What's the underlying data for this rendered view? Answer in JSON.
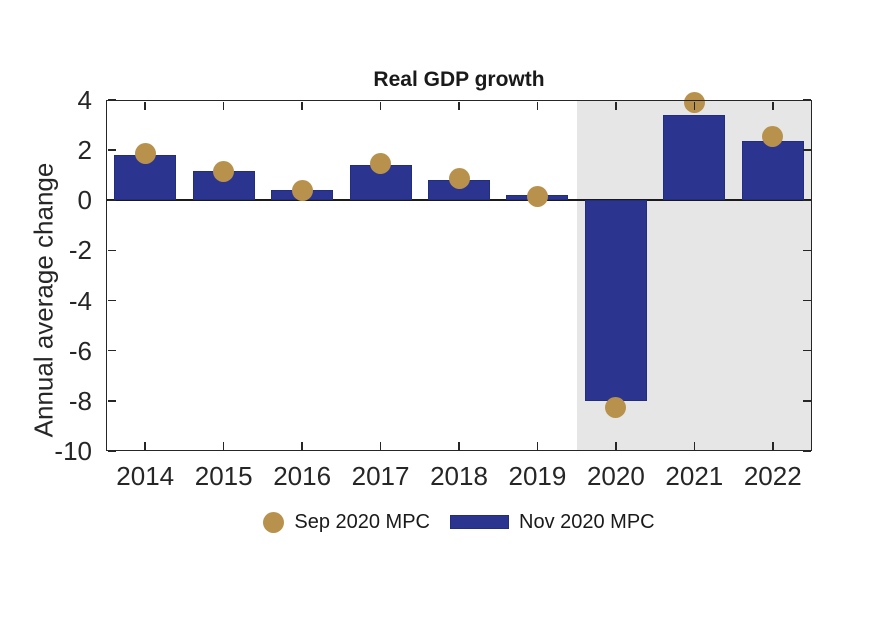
{
  "title": "Real GDP growth",
  "y_axis": {
    "label": "Annual average change",
    "ticks": [
      "4",
      "2",
      "0",
      "-2",
      "-4",
      "-6",
      "-8",
      "-10"
    ],
    "range": [
      -10,
      4
    ]
  },
  "x_axis": {
    "ticks": [
      "2014",
      "2015",
      "2016",
      "2017",
      "2018",
      "2019",
      "2020",
      "2021",
      "2022"
    ]
  },
  "legend": {
    "items": [
      {
        "label": "Sep 2020 MPC",
        "marker": "circle",
        "color": "#B8924C"
      },
      {
        "label": "Nov 2020 MPC",
        "marker": "square",
        "color": "#2B3590",
        "edge": "#232D7D"
      }
    ]
  },
  "chart_data": {
    "type": "bar",
    "title": "Real GDP growth",
    "xlabel": "",
    "ylabel": "Annual average change",
    "categories": [
      "2014",
      "2015",
      "2016",
      "2017",
      "2018",
      "2019",
      "2020",
      "2021",
      "2022"
    ],
    "series": [
      {
        "name": "Sep 2020 MPC",
        "type": "scatter",
        "marker": "circle",
        "color": "#B8924C",
        "values": [
          1.85,
          1.15,
          0.4,
          1.45,
          0.85,
          0.15,
          -8.25,
          3.9,
          2.55
        ]
      },
      {
        "name": "Nov 2020 MPC",
        "type": "bar",
        "color": "#2B3590",
        "values": [
          1.8,
          1.15,
          0.4,
          1.4,
          0.8,
          0.2,
          -8.0,
          3.4,
          2.35
        ]
      }
    ],
    "ylim": [
      -10,
      4
    ],
    "yticks": [
      4,
      2,
      0,
      -2,
      -4,
      -6,
      -8,
      -10
    ],
    "grid": false,
    "box": true,
    "legend_position": "below",
    "forecast_region": {
      "start_category": "2020",
      "includes_half_gap_before": true,
      "color": "#E6E6E6",
      "extends_to": "right-edge"
    }
  },
  "colors": {
    "bar_fill": "#2B3590",
    "bar_edge": "#232D7D",
    "marker": "#B8924C",
    "forecast_shading": "#E6E6E6",
    "axis": "#262626",
    "zero_line": "#1A1A1A",
    "text": "#262626",
    "background": "#FFFFFF"
  }
}
